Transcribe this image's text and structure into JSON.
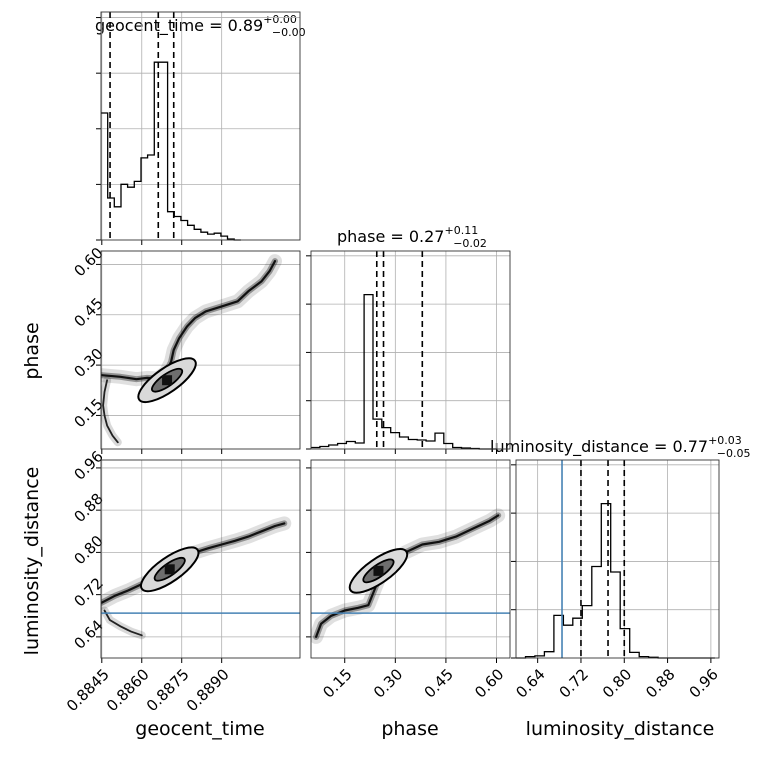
{
  "chart_data": {
    "type": "corner",
    "grid": true,
    "parameters": [
      "geocent_time",
      "phase",
      "luminosity_distance"
    ],
    "axes": {
      "geocent_time": {
        "label": "geocent_time",
        "ticks": [
          0.8845,
          0.886,
          0.8875,
          0.889
        ],
        "tick_labels": [
          "0.8845",
          "0.8860",
          "0.8875",
          "0.8890"
        ],
        "range": [
          0.88447,
          0.89194
        ]
      },
      "phase": {
        "label": "phase",
        "ticks": [
          0.15,
          0.3,
          0.45,
          0.6
        ],
        "tick_labels": [
          "0.15",
          "0.30",
          "0.45",
          "0.60"
        ],
        "range": [
          0.05,
          0.64
        ]
      },
      "luminosity_distance": {
        "label": "luminosity_distance",
        "ticks": [
          0.64,
          0.72,
          0.8,
          0.88,
          0.96
        ],
        "tick_labels": [
          "0.64",
          "0.72",
          "0.80",
          "0.88",
          "0.96"
        ],
        "range": [
          0.6,
          0.975
        ]
      }
    },
    "titles": [
      {
        "param": "geocent_time",
        "prefix": "geocent_time = 0.89",
        "plus": "+0.00",
        "minus": "−0.00"
      },
      {
        "param": "phase",
        "prefix": "phase = 0.27",
        "plus": "+0.11",
        "minus": "−0.02"
      },
      {
        "param": "luminosity_distance",
        "prefix": "luminosity_distance = 0.77",
        "plus": "+0.03",
        "minus": "−0.05"
      }
    ],
    "histograms": {
      "geocent_time": {
        "bin_edges": [
          0.88447,
          0.88472,
          0.88497,
          0.88522,
          0.88547,
          0.88572,
          0.88597,
          0.88622,
          0.88647,
          0.88672,
          0.88697,
          0.88722,
          0.88747,
          0.88772,
          0.88797,
          0.88822,
          0.88847,
          0.88872,
          0.88897,
          0.88922,
          0.88947,
          0.88972
        ],
        "counts": [
          130,
          43,
          34,
          57,
          54,
          60,
          84,
          87,
          182,
          182,
          29,
          24,
          20,
          15,
          11,
          8,
          6,
          7,
          4,
          1,
          0
        ],
        "quantiles": [
          0.88481,
          0.88662,
          0.8872
        ]
      },
      "phase": {
        "bin_edges": [
          0.05,
          0.0763,
          0.1025,
          0.1288,
          0.155,
          0.1813,
          0.2075,
          0.2338,
          0.26,
          0.2863,
          0.3125,
          0.3388,
          0.365,
          0.3913,
          0.4175,
          0.4438,
          0.47,
          0.4963,
          0.5225,
          0.5488,
          0.575,
          0.6013
        ],
        "counts": [
          3,
          5,
          8,
          11,
          15,
          12,
          310,
          60,
          43,
          33,
          24,
          19,
          18,
          16,
          32,
          11,
          3,
          2,
          1,
          0,
          0
        ],
        "quantiles": [
          0.245,
          0.265,
          0.38
        ]
      },
      "luminosity_distance": {
        "bin_edges": [
          0.6,
          0.6175,
          0.635,
          0.6525,
          0.67,
          0.6875,
          0.705,
          0.7225,
          0.74,
          0.7575,
          0.775,
          0.7925,
          0.81,
          0.8275,
          0.845,
          0.8625,
          0.88,
          0.8975,
          0.915,
          0.9325,
          0.95,
          0.9675
        ],
        "counts": [
          0,
          2,
          3,
          9,
          61,
          47,
          57,
          75,
          131,
          221,
          123,
          42,
          8,
          2,
          1,
          0,
          0,
          0,
          0,
          0,
          0
        ],
        "quantiles": [
          0.72,
          0.77,
          0.8
        ]
      }
    },
    "truth": {
      "luminosity_distance": 0.685
    },
    "samples_2d": [
      {
        "x": "geocent_time",
        "y": "phase",
        "ridge": [
          [
            0.8845,
            0.27
          ],
          [
            0.8852,
            0.265
          ],
          [
            0.8858,
            0.258
          ],
          [
            0.8862,
            0.262
          ],
          [
            0.8866,
            0.26
          ],
          [
            0.8869,
            0.278
          ],
          [
            0.8871,
            0.31
          ],
          [
            0.8872,
            0.345
          ],
          [
            0.8874,
            0.38
          ],
          [
            0.8877,
            0.415
          ],
          [
            0.888,
            0.44
          ],
          [
            0.8884,
            0.46
          ],
          [
            0.889,
            0.475
          ],
          [
            0.8896,
            0.49
          ],
          [
            0.89,
            0.52
          ],
          [
            0.8905,
            0.55
          ],
          [
            0.8908,
            0.58
          ],
          [
            0.891,
            0.61
          ]
        ],
        "side_branch": [
          [
            0.8847,
            0.255
          ],
          [
            0.8846,
            0.22
          ],
          [
            0.88455,
            0.18
          ],
          [
            0.8846,
            0.15
          ],
          [
            0.8847,
            0.12
          ],
          [
            0.8849,
            0.09
          ],
          [
            0.8851,
            0.07
          ]
        ],
        "peak": [
          0.88695,
          0.255
        ]
      },
      {
        "x": "geocent_time",
        "y": "luminosity_distance",
        "ridge": [
          [
            0.8845,
            0.705
          ],
          [
            0.885,
            0.718
          ],
          [
            0.8855,
            0.728
          ],
          [
            0.886,
            0.74
          ],
          [
            0.8864,
            0.748
          ],
          [
            0.8868,
            0.758
          ],
          [
            0.8872,
            0.77
          ],
          [
            0.8876,
            0.79
          ],
          [
            0.888,
            0.8
          ],
          [
            0.8885,
            0.808
          ],
          [
            0.889,
            0.815
          ],
          [
            0.8895,
            0.822
          ],
          [
            0.89,
            0.83
          ],
          [
            0.8905,
            0.84
          ],
          [
            0.891,
            0.85
          ],
          [
            0.89135,
            0.855
          ]
        ],
        "side_branch": [
          [
            0.8846,
            0.69
          ],
          [
            0.8848,
            0.672
          ],
          [
            0.8852,
            0.66
          ],
          [
            0.8856,
            0.65
          ],
          [
            0.886,
            0.643
          ]
        ],
        "peak": [
          0.88705,
          0.768
        ]
      },
      {
        "x": "phase",
        "y": "luminosity_distance",
        "ridge": [
          [
            0.065,
            0.64
          ],
          [
            0.08,
            0.665
          ],
          [
            0.11,
            0.68
          ],
          [
            0.15,
            0.69
          ],
          [
            0.19,
            0.695
          ],
          [
            0.22,
            0.7
          ],
          [
            0.245,
            0.74
          ],
          [
            0.26,
            0.765
          ],
          [
            0.28,
            0.775
          ],
          [
            0.3,
            0.79
          ],
          [
            0.33,
            0.8
          ],
          [
            0.38,
            0.815
          ],
          [
            0.43,
            0.82
          ],
          [
            0.48,
            0.83
          ],
          [
            0.53,
            0.845
          ],
          [
            0.58,
            0.86
          ],
          [
            0.605,
            0.87
          ]
        ],
        "side_branch": [],
        "peak": [
          0.25,
          0.765
        ]
      }
    ]
  }
}
